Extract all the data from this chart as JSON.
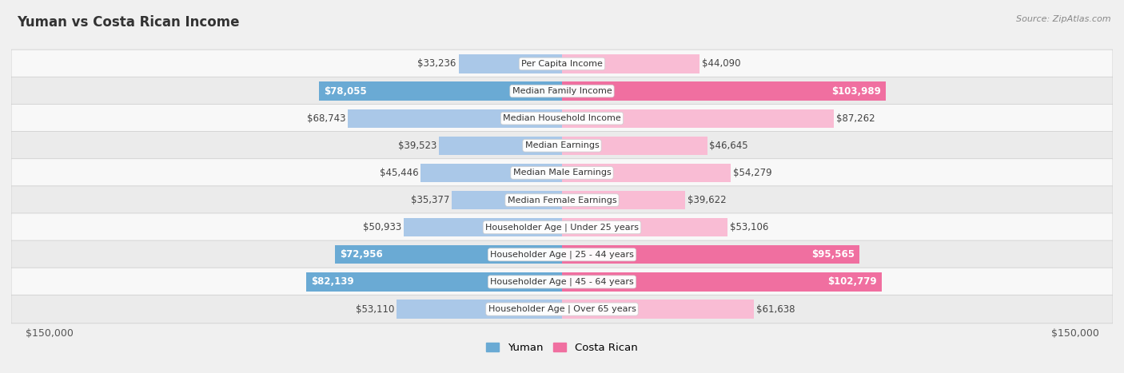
{
  "title": "Yuman vs Costa Rican Income",
  "source": "Source: ZipAtlas.com",
  "categories": [
    "Per Capita Income",
    "Median Family Income",
    "Median Household Income",
    "Median Earnings",
    "Median Male Earnings",
    "Median Female Earnings",
    "Householder Age | Under 25 years",
    "Householder Age | 25 - 44 years",
    "Householder Age | 45 - 64 years",
    "Householder Age | Over 65 years"
  ],
  "yuman_values": [
    33236,
    78055,
    68743,
    39523,
    45446,
    35377,
    50933,
    72956,
    82139,
    53110
  ],
  "costa_rican_values": [
    44090,
    103989,
    87262,
    46645,
    54279,
    39622,
    53106,
    95565,
    102779,
    61638
  ],
  "yuman_labels": [
    "$33,236",
    "$78,055",
    "$68,743",
    "$39,523",
    "$45,446",
    "$35,377",
    "$50,933",
    "$72,956",
    "$82,139",
    "$53,110"
  ],
  "costa_rican_labels": [
    "$44,090",
    "$103,989",
    "$87,262",
    "$46,645",
    "$54,279",
    "$39,622",
    "$53,106",
    "$95,565",
    "$102,779",
    "$61,638"
  ],
  "yuman_color_light": "#aac8e8",
  "yuman_color_dark": "#6aaad4",
  "costa_rican_color_light": "#f9bcd4",
  "costa_rican_color_dark": "#f06fa0",
  "highlight_rows": [
    1,
    7,
    8
  ],
  "xlim": 150000,
  "bar_height": 0.68,
  "background_color": "#f0f0f0",
  "row_bg_even": "#f8f8f8",
  "row_bg_odd": "#ebebeb",
  "legend_labels": [
    "Yuman",
    "Costa Rican"
  ],
  "xlabel_left": "$150,000",
  "xlabel_right": "$150,000",
  "title_fontsize": 12,
  "label_fontsize": 8.5,
  "category_fontsize": 8.0
}
